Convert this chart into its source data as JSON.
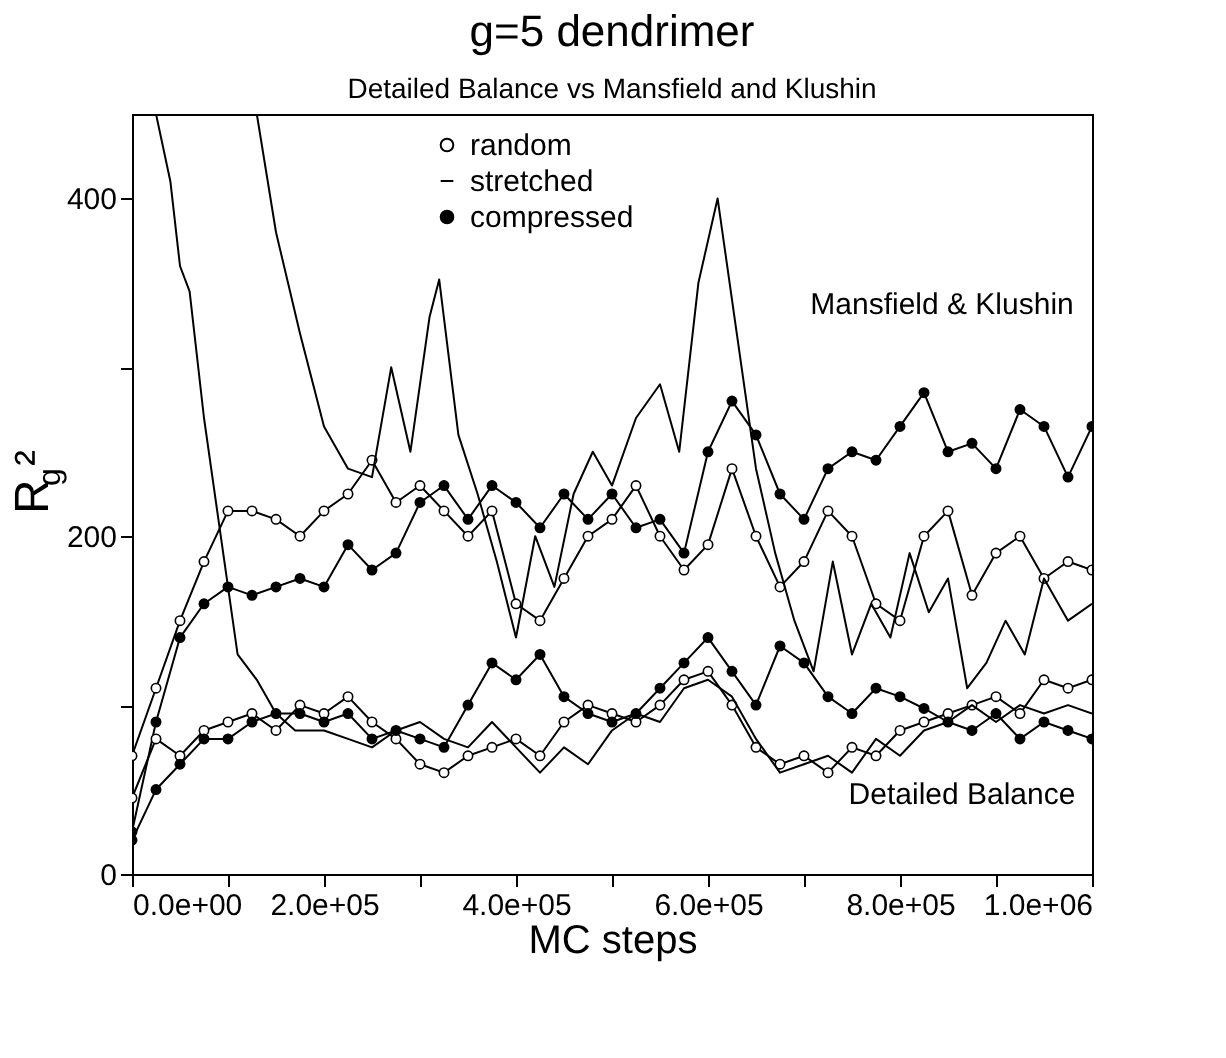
{
  "chart_data": {
    "type": "line",
    "title": "g=5 dendrimer",
    "subtitle": "Detailed Balance vs Mansfield and Klushin",
    "xlabel": "MC steps",
    "ylabel": "R$_{g}$²",
    "xlim": [
      0,
      1000000
    ],
    "ylim": [
      0,
      450
    ],
    "xticks": [
      {
        "value": 0,
        "label": "0.0e+00"
      },
      {
        "value": 100000,
        "label": null
      },
      {
        "value": 200000,
        "label": "2.0e+05"
      },
      {
        "value": 300000,
        "label": null
      },
      {
        "value": 400000,
        "label": "4.0e+05"
      },
      {
        "value": 500000,
        "label": null
      },
      {
        "value": 600000,
        "label": "6.0e+05"
      },
      {
        "value": 700000,
        "label": null
      },
      {
        "value": 800000,
        "label": "8.0e+05"
      },
      {
        "value": 900000,
        "label": null
      },
      {
        "value": 1000000,
        "label": "1.0e+06"
      }
    ],
    "yticks": [
      0,
      {
        "value": 100,
        "label": null
      },
      200,
      {
        "value": 300,
        "label": null
      },
      400
    ],
    "grid": false,
    "legend": "top",
    "line_style": "solid",
    "x": [
      0,
      25000,
      50000,
      75000,
      100000,
      125000,
      150000,
      175000,
      200000,
      225000,
      250000,
      275000,
      300000,
      325000,
      350000,
      375000,
      400000,
      425000,
      450000,
      475000,
      500000,
      525000,
      550000,
      575000,
      600000,
      625000,
      650000,
      675000,
      700000,
      725000,
      750000,
      775000,
      800000,
      825000,
      850000,
      875000,
      900000,
      925000,
      950000,
      975000,
      1000000
    ],
    "series": [
      {
        "name": "random",
        "color": "#000000",
        "marker": "circle",
        "values": [
          70,
          110,
          150,
          185,
          215,
          215,
          210,
          200,
          215,
          225,
          245,
          220,
          230,
          215,
          200,
          215,
          160,
          150,
          175,
          200,
          210,
          230,
          200,
          180,
          195,
          240,
          200,
          170,
          185,
          215,
          200,
          160,
          150,
          200,
          215,
          165,
          190,
          200,
          175,
          185,
          180
        ]
      },
      {
        "name": "stretched",
        "color": "#000000",
        "marker": "none",
        "x": [
          130000,
          150000,
          175000,
          200000,
          225000,
          250000,
          270000,
          290000,
          310000,
          320000,
          340000,
          360000,
          380000,
          400000,
          420000,
          440000,
          460000,
          480000,
          500000,
          525000,
          550000,
          570000,
          590000,
          610000,
          630000,
          650000,
          670000,
          690000,
          710000,
          730000,
          750000,
          770000,
          790000,
          810000,
          830000,
          850000,
          870000,
          890000,
          910000,
          930000,
          950000,
          975000,
          1000000
        ],
        "values": [
          450,
          380,
          320,
          265,
          240,
          235,
          300,
          250,
          330,
          352,
          260,
          225,
          185,
          140,
          200,
          170,
          225,
          250,
          230,
          270,
          290,
          250,
          350,
          400,
          320,
          240,
          190,
          150,
          120,
          185,
          130,
          160,
          140,
          190,
          155,
          175,
          110,
          125,
          150,
          130,
          175,
          150,
          160
        ]
      },
      {
        "name": "compressed",
        "color": "#000000",
        "marker": "circle",
        "values": [
          25,
          90,
          140,
          160,
          170,
          165,
          170,
          175,
          170,
          195,
          180,
          190,
          220,
          230,
          210,
          230,
          220,
          205,
          225,
          210,
          225,
          205,
          210,
          190,
          250,
          280,
          260,
          225,
          210,
          240,
          250,
          245,
          265,
          285,
          250,
          255,
          240,
          275,
          265,
          235,
          265
        ]
      },
      {
        "color": "#000000",
        "marker": "circle",
        "values": [
          45,
          80,
          70,
          85,
          90,
          95,
          85,
          100,
          95,
          105,
          90,
          80,
          65,
          60,
          70,
          75,
          80,
          70,
          90,
          100,
          95,
          90,
          100,
          115,
          120,
          100,
          75,
          65,
          70,
          60,
          75,
          70,
          85,
          90,
          95,
          100,
          105,
          95,
          115,
          110,
          115
        ]
      },
      {
        "color": "#000000",
        "marker": "none",
        "x": [
          25000,
          40000,
          50000,
          60000,
          75000,
          90000,
          100000,
          110000,
          130000,
          150000,
          170000,
          200000,
          225000,
          250000,
          275000,
          300000,
          325000,
          350000,
          375000,
          400000,
          425000,
          450000,
          475000,
          500000,
          525000,
          550000,
          575000,
          600000,
          625000,
          650000,
          675000,
          700000,
          725000,
          750000,
          775000,
          800000,
          825000,
          850000,
          875000,
          900000,
          925000,
          950000,
          975000,
          1000000
        ],
        "values": [
          450,
          410,
          360,
          345,
          270,
          210,
          170,
          130,
          115,
          95,
          85,
          85,
          80,
          75,
          85,
          90,
          80,
          75,
          90,
          75,
          60,
          75,
          65,
          85,
          95,
          90,
          110,
          115,
          105,
          80,
          60,
          65,
          70,
          60,
          80,
          70,
          85,
          90,
          100,
          90,
          100,
          95,
          100,
          95
        ]
      },
      {
        "color": "#000000",
        "marker": "circle",
        "values": [
          20,
          50,
          65,
          80,
          80,
          90,
          95,
          95,
          90,
          95,
          80,
          85,
          80,
          75,
          100,
          125,
          115,
          130,
          105,
          95,
          90,
          95,
          110,
          125,
          140,
          120,
          100,
          135,
          125,
          105,
          95,
          110,
          105,
          98,
          90,
          85,
          95,
          80,
          90,
          85,
          80
        ]
      }
    ],
    "annotations": [
      "Mansfield & Klushin",
      "Detailed Balance"
    ]
  }
}
